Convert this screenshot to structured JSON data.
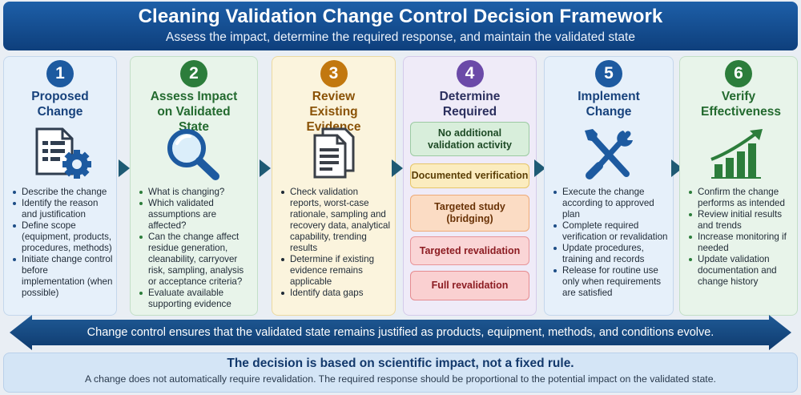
{
  "header": {
    "title": "Cleaning Validation Change Control Decision Framework",
    "subtitle": "Assess the impact, determine the required response, and maintain the validated state"
  },
  "steps": [
    {
      "number": "1",
      "title": "Proposed Change",
      "icon": "document-gear-icon",
      "bullets": [
        "Describe the change",
        "Identify the reason and justification",
        "Define scope (equipment, products, procedures, methods)",
        "Initiate change control before implementation (when possible)"
      ]
    },
    {
      "number": "2",
      "title": "Assess Impact on Validated State",
      "icon": "magnifier-icon",
      "bullets": [
        "What is changing?",
        "Which validated assumptions are affected?",
        "Can the change affect residue generation, cleanability, carryover risk, sampling, analysis or acceptance criteria?",
        "Evaluate available supporting evidence"
      ]
    },
    {
      "number": "3",
      "title": "Review Existing Evidence",
      "icon": "documents-icon",
      "bullets": [
        "Check validation reports, worst-case rationale, sampling and recovery data, analytical capability, trending results",
        "Determine if existing evidence remains applicable",
        "Identify data gaps"
      ]
    },
    {
      "number": "4",
      "title": "Determine Required Response",
      "responses": [
        "No additional validation activity",
        "Documented verification",
        "Targeted study (bridging)",
        "Targeted revalidation",
        "Full revalidation"
      ]
    },
    {
      "number": "5",
      "title": "Implement Change",
      "icon": "wrench-screwdriver-icon",
      "bullets": [
        "Execute the change according to approved plan",
        "Complete required verification or revalidation",
        "Update procedures, training and records",
        "Release for routine use only when requirements are satisfied"
      ]
    },
    {
      "number": "6",
      "title": "Verify Effectiveness",
      "icon": "bar-chart-trend-icon",
      "bullets": [
        "Confirm the change performs as intended",
        "Review initial results and trends",
        "Increase monitoring if needed",
        "Update validation documentation and change history"
      ]
    }
  ],
  "band": {
    "text": "Change control ensures that the validated state remains justified as products, equipment, methods, and conditions evolve."
  },
  "footer": {
    "headline": "The decision is based on scientific impact, not a fixed rule.",
    "note": "A change does not automatically require revalidation. The required response should be proportional to the potential impact on the validated state."
  },
  "colors": {
    "header_blue": "#14508f",
    "step_blue": "#1d5aa0",
    "step_green": "#2c7d3b",
    "step_orange": "#c2780f",
    "step_purple": "#6b4aa8",
    "arrow_teal": "#1e5a74"
  }
}
